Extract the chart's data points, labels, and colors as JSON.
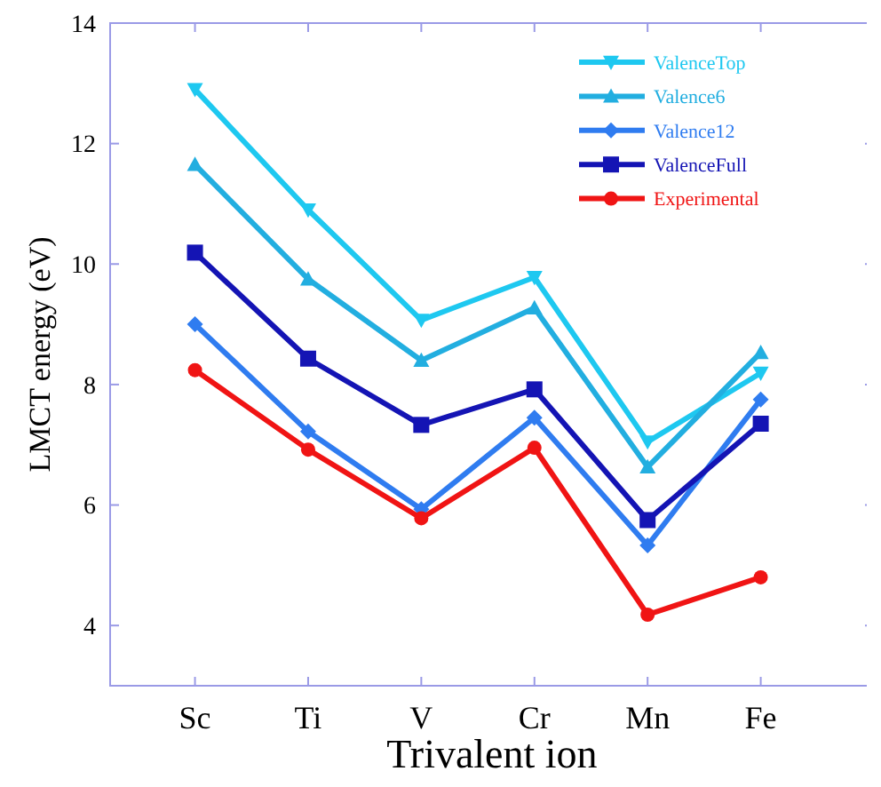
{
  "chart_data": {
    "type": "line",
    "xlabel": "Trivalent ion",
    "ylabel": "LMCT energy (eV)",
    "categories": [
      "Sc",
      "Ti",
      "V",
      "Cr",
      "Mn",
      "Fe"
    ],
    "ylim": [
      3,
      14
    ],
    "yticks": [
      4,
      6,
      8,
      10,
      12,
      14
    ],
    "grid": false,
    "legend": "top right",
    "line_style": "solid",
    "series": [
      {
        "name": "ValenceTop",
        "color": "#1ec8f0",
        "marker": "triangle-down",
        "values": [
          12.9,
          10.9,
          9.07,
          9.78,
          7.05,
          8.19
        ]
      },
      {
        "name": "Valence6",
        "color": "#22aee0",
        "marker": "triangle",
        "values": [
          11.65,
          9.75,
          8.4,
          9.27,
          6.63,
          8.53
        ]
      },
      {
        "name": "Valence12",
        "color": "#2f7cf0",
        "marker": "diamond",
        "values": [
          9.0,
          7.22,
          5.93,
          7.45,
          5.33,
          7.75
        ]
      },
      {
        "name": "ValenceFull",
        "color": "#1414b4",
        "marker": "square",
        "values": [
          10.19,
          8.43,
          7.33,
          7.92,
          5.75,
          7.35
        ]
      },
      {
        "name": "Experimental",
        "color": "#f01414",
        "marker": "circle",
        "values": [
          8.24,
          6.92,
          5.78,
          6.95,
          4.18,
          4.8
        ]
      }
    ]
  }
}
